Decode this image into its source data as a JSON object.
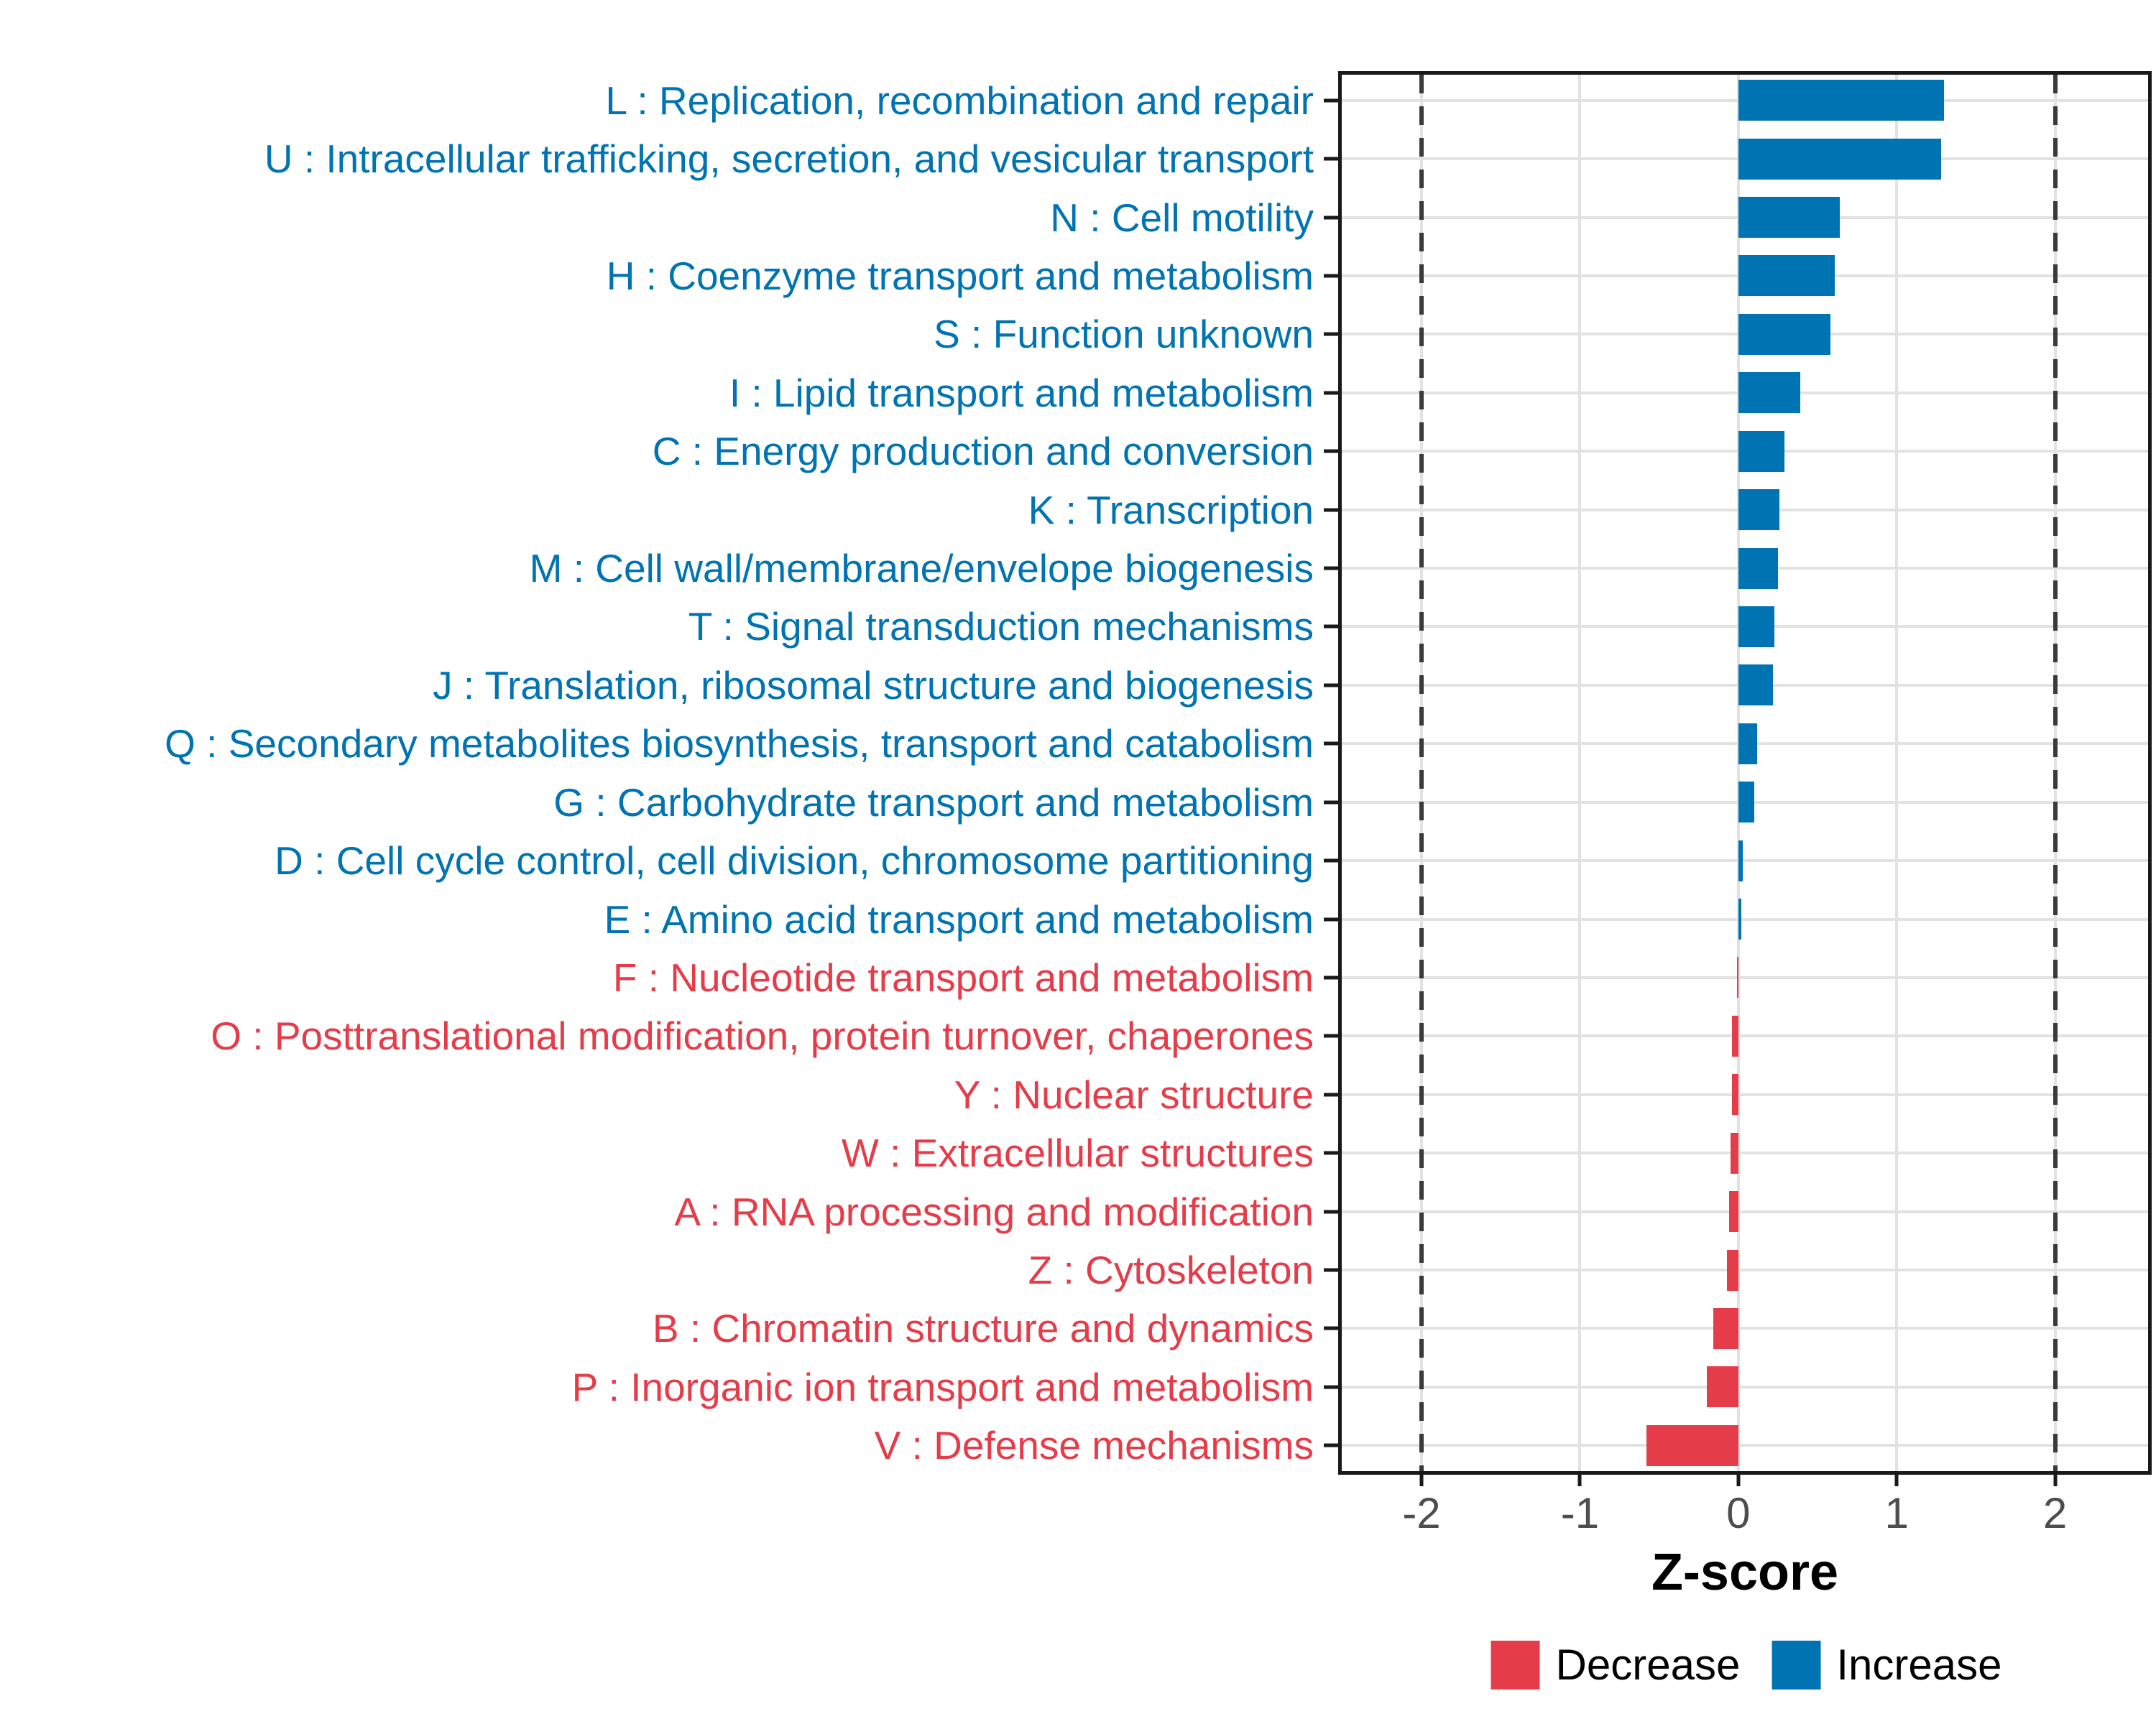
{
  "figure": {
    "x_axis": {
      "title": "Z-score",
      "tick_labels": [
        "-2",
        "-1",
        "0",
        "1",
        "2"
      ],
      "tick_values": [
        -2,
        -1,
        0,
        1,
        2
      ]
    },
    "guides": {
      "dashed_at": [
        -2,
        2
      ]
    },
    "legend": {
      "items": [
        {
          "label": "Decrease",
          "color": "#E53C49"
        },
        {
          "label": "Increase",
          "color": "#0073B2"
        }
      ]
    },
    "colors": {
      "increase": "#0073B2",
      "decrease": "#E53C49",
      "grid": "#E2E2E2",
      "dashed_guide": "#3A3A3A",
      "axis_text": "#4D4D4D",
      "panel_border": "#1A1A1A"
    }
  },
  "chart_data": {
    "type": "bar",
    "orientation": "horizontal",
    "title": "",
    "xlabel": "Z-score",
    "ylabel": "",
    "xlim": [
      -2.53,
      2.61
    ],
    "grid": true,
    "legend_position": "bottom",
    "categories": [
      "L : Replication, recombination and repair",
      "U : Intracellular trafficking, secretion, and vesicular transport",
      "N : Cell motility",
      "H : Coenzyme transport and metabolism",
      "S : Function unknown",
      "I : Lipid transport and metabolism",
      "C : Energy production and conversion",
      "K : Transcription",
      "M : Cell wall/membrane/envelope biogenesis",
      "T : Signal transduction mechanisms",
      "J : Translation, ribosomal structure and biogenesis",
      "Q : Secondary metabolites biosynthesis, transport and catabolism",
      "G : Carbohydrate transport and metabolism",
      "D : Cell cycle control, cell division, chromosome partitioning",
      "E : Amino acid transport and metabolism",
      "F : Nucleotide transport and metabolism",
      "O : Posttranslational modification, protein turnover, chaperones",
      "Y : Nuclear structure",
      "W : Extracellular structures",
      "A : RNA processing and modification",
      "Z : Cytoskeleton",
      "B : Chromatin structure and dynamics",
      "P : Inorganic ion transport and metabolism",
      "V : Defense mechanisms"
    ],
    "values": [
      1.3,
      1.28,
      0.64,
      0.61,
      0.58,
      0.39,
      0.29,
      0.26,
      0.25,
      0.23,
      0.22,
      0.12,
      0.1,
      0.03,
      0.02,
      -0.01,
      -0.04,
      -0.04,
      -0.05,
      -0.06,
      -0.07,
      -0.16,
      -0.2,
      -0.58
    ],
    "groups": [
      "Increase",
      "Increase",
      "Increase",
      "Increase",
      "Increase",
      "Increase",
      "Increase",
      "Increase",
      "Increase",
      "Increase",
      "Increase",
      "Increase",
      "Increase",
      "Increase",
      "Increase",
      "Decrease",
      "Decrease",
      "Decrease",
      "Decrease",
      "Decrease",
      "Decrease",
      "Decrease",
      "Decrease",
      "Decrease"
    ]
  }
}
